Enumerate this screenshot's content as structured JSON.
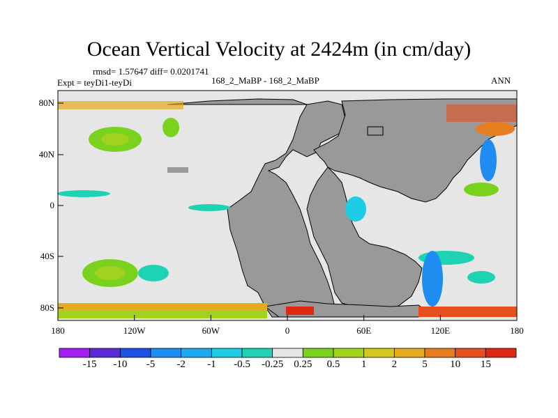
{
  "title": "Ocean Vertical Velocity at 2424m (in cm/day)",
  "stats": "rmsd= 1.57647 diff= 0.0201741",
  "experiment": "Expt = teyDi1-teyDi",
  "case_label": "168_2_MaBP - 168_2_MaBP",
  "season": "ANN",
  "chart_data": {
    "type": "heatmap",
    "projection": "cylindrical-equidistant",
    "xlim": [
      -180,
      180
    ],
    "ylim": [
      -90,
      90
    ],
    "x_ticks": [
      "180",
      "120W",
      "60W",
      "0",
      "60E",
      "120E",
      "180"
    ],
    "y_ticks": [
      "80N",
      "40N",
      "0",
      "40S",
      "80S"
    ],
    "colorbar": {
      "levels": [
        "-15",
        "-10",
        "-5",
        "-2",
        "-1",
        "-0.5",
        "-0.25",
        "0.25",
        "0.5",
        "1",
        "2",
        "5",
        "10",
        "15"
      ],
      "colors": [
        "#a020f0",
        "#5a2ad8",
        "#1e50e6",
        "#1e8cf0",
        "#1eaaf0",
        "#1ecce6",
        "#1ed2b4",
        "#e6e6e6",
        "#7ad21e",
        "#a0d21e",
        "#d2c81e",
        "#e6aa1e",
        "#e67d1e",
        "#e6501e",
        "#dc2814"
      ]
    },
    "land_color": "#999999",
    "near_zero_color": "#e6e6e6"
  }
}
